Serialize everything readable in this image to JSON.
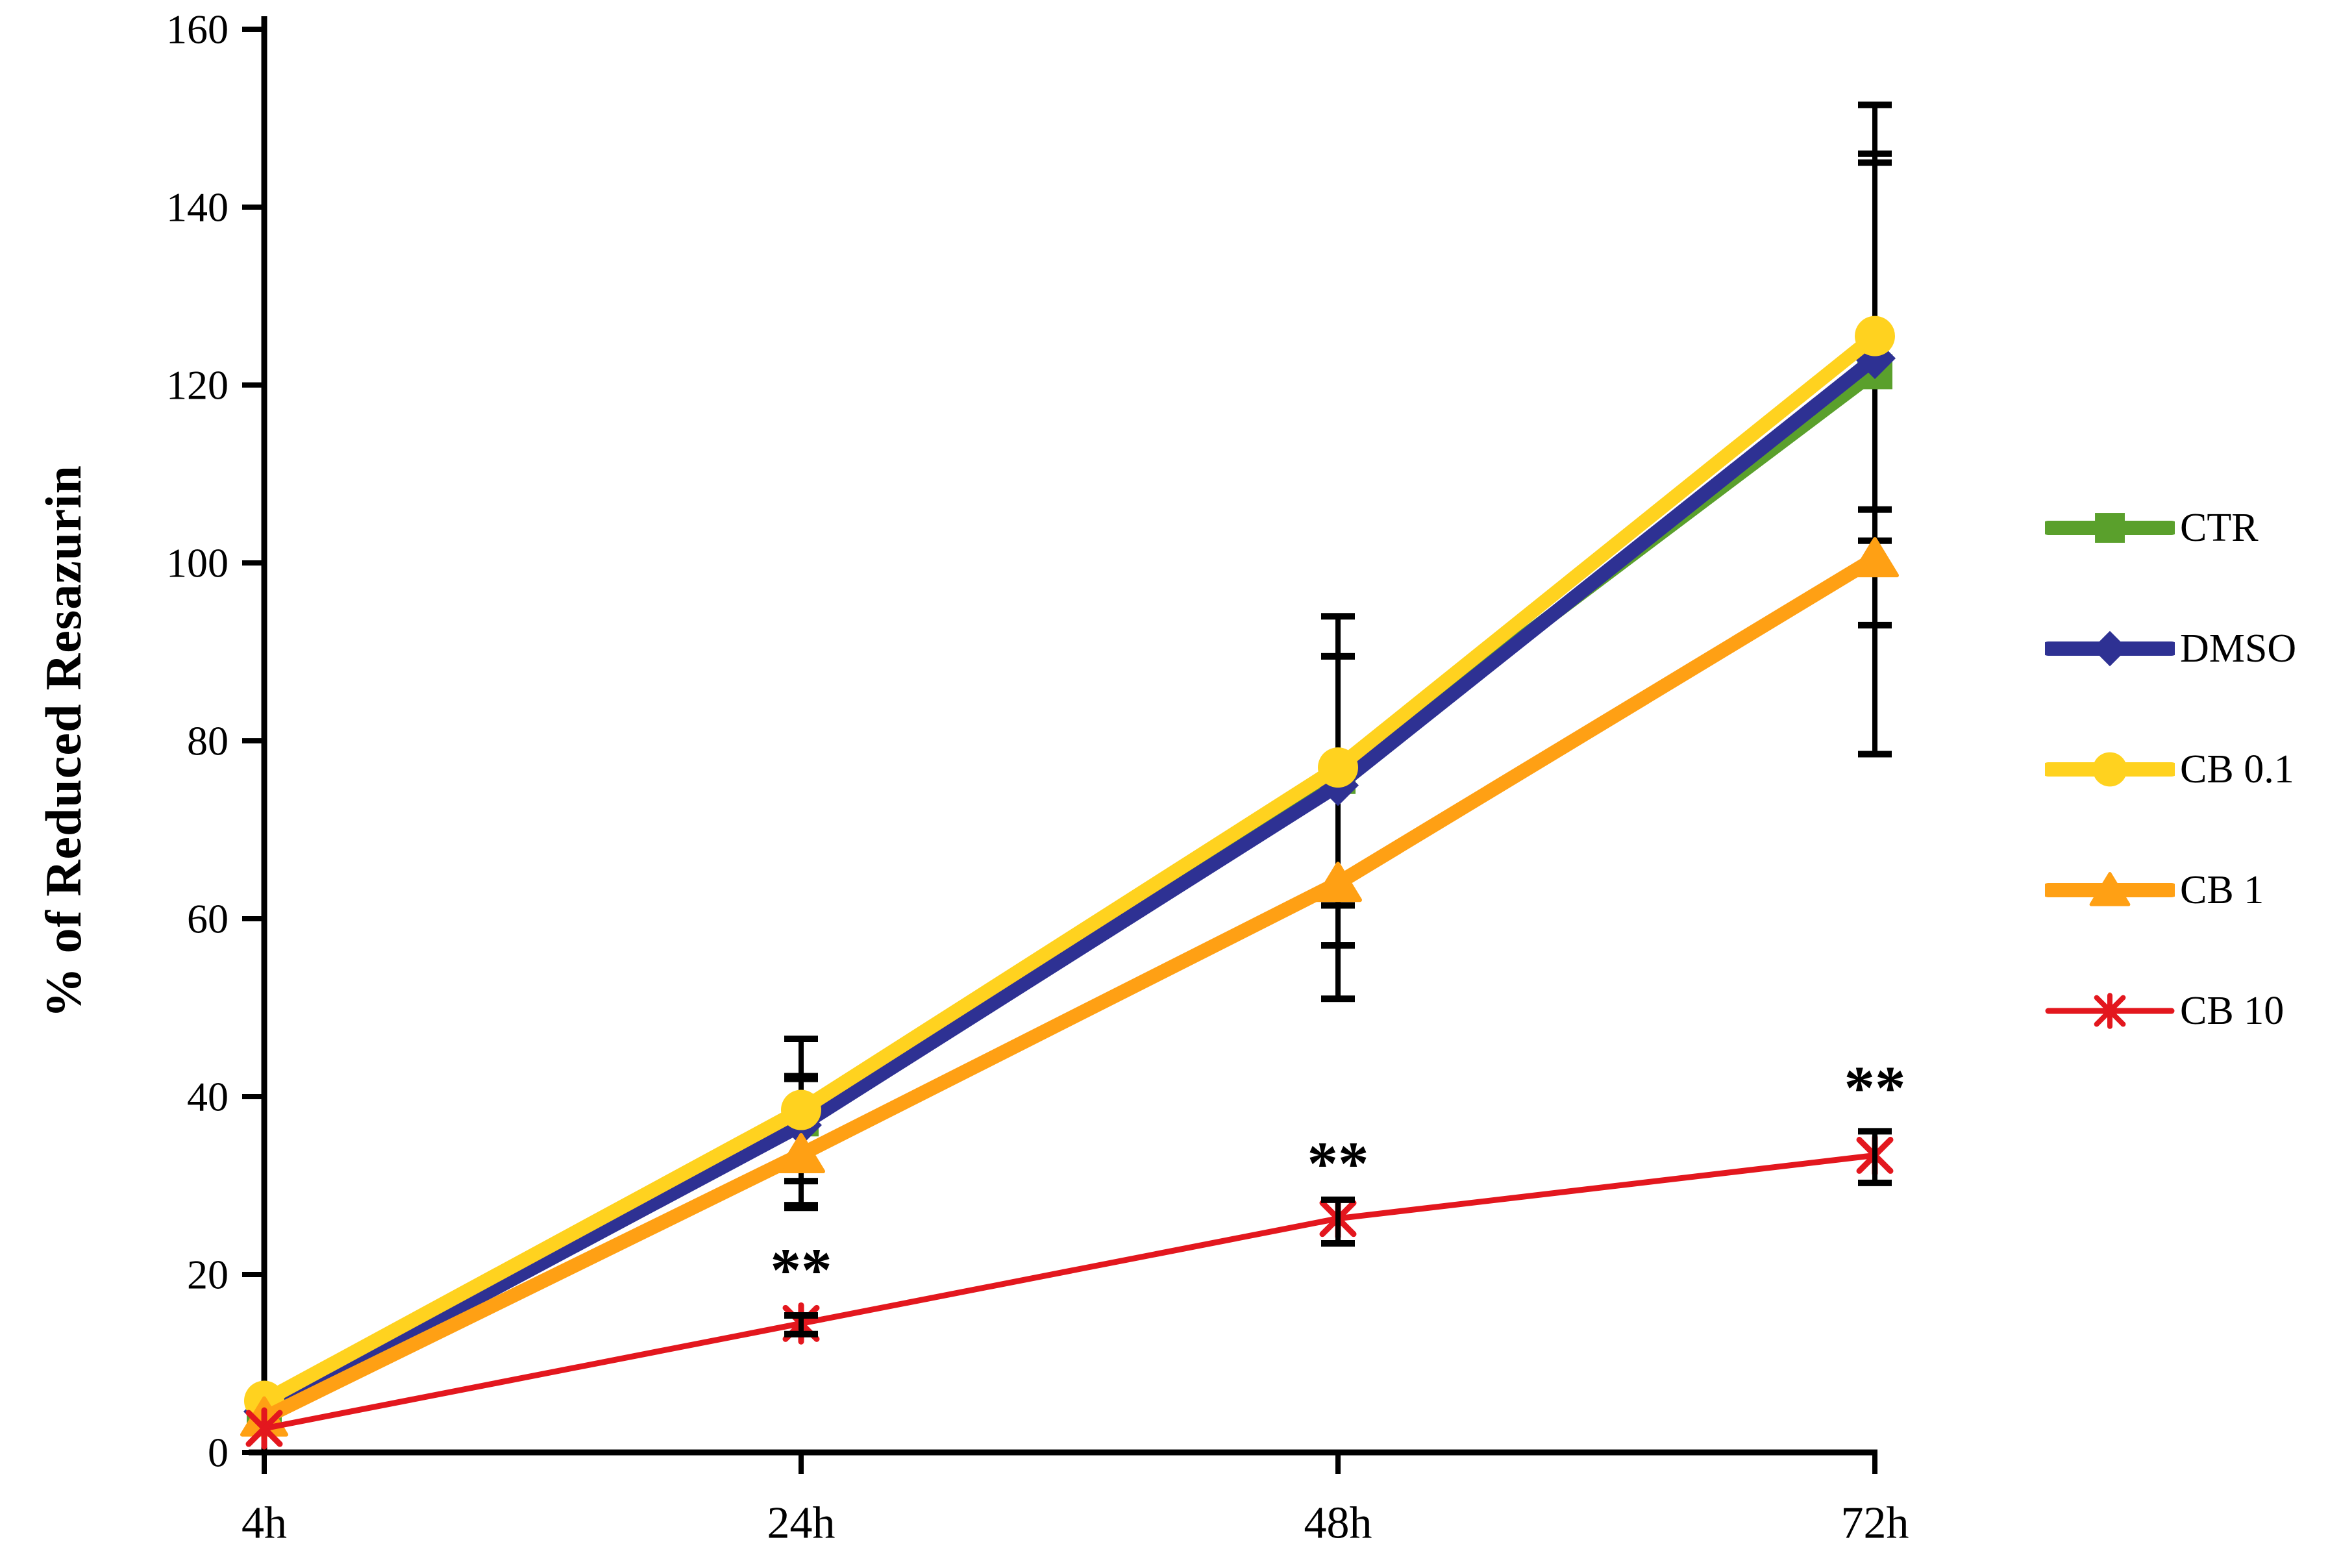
{
  "chart_data": {
    "type": "line",
    "title": "",
    "ylabel": "% of Reduced Resazurin",
    "xlabel": "",
    "categories": [
      "4h",
      "24h",
      "48h",
      "72h"
    ],
    "ylim": [
      0,
      160
    ],
    "ytick_step": 20,
    "grid": false,
    "legend_position": "right",
    "axis_color": "#000000",
    "annotation_color": "#000000",
    "series": [
      {
        "name": "CTR",
        "color": "#5AA02C",
        "marker": "square",
        "line_width": 22,
        "values": [
          4.7,
          37.5,
          76.0,
          121.5
        ],
        "err_up": [
          0,
          4.5,
          13.5,
          23.5
        ],
        "err_down": [
          0,
          5.5,
          14.5,
          19.0
        ]
      },
      {
        "name": "DMSO",
        "color": "#2E3193",
        "marker": "diamond",
        "line_width": 22,
        "values": [
          4.6,
          36.8,
          75.0,
          123.0
        ],
        "err_up": [
          0,
          5.5,
          14.5,
          23.0
        ],
        "err_down": [
          0,
          9.0,
          18.0,
          30.0
        ]
      },
      {
        "name": "CB 0.1",
        "color": "#FFD21F",
        "marker": "circle",
        "line_width": 22,
        "values": [
          5.8,
          38.5,
          77.0,
          125.5
        ],
        "err_up": [
          0,
          8.0,
          17.0,
          26.0
        ],
        "err_down": [
          0,
          8.0,
          20.0,
          19.5
        ]
      },
      {
        "name": "CB 1",
        "color": "#FFA014",
        "marker": "triangle",
        "line_width": 22,
        "values": [
          3.9,
          33.5,
          64.0,
          100.5
        ],
        "err_up": [
          0,
          8.5,
          13.0,
          22.0
        ],
        "err_down": [
          0,
          6.0,
          13.0,
          22.0
        ]
      },
      {
        "name": "CB 10",
        "color": "#E3171E",
        "marker": "asterisk",
        "line_width": 9,
        "values": [
          2.7,
          14.5,
          26.3,
          33.4
        ],
        "err_up": [
          0,
          0.9,
          2.1,
          2.7
        ],
        "err_down": [
          0,
          1.2,
          2.8,
          3.1
        ]
      }
    ],
    "annotations": [
      {
        "text": "**",
        "x_index": 1,
        "y": 20.5
      },
      {
        "text": "**",
        "x_index": 2,
        "y": 32.5
      },
      {
        "text": "**",
        "x_index": 3,
        "y": 41.0
      }
    ]
  }
}
